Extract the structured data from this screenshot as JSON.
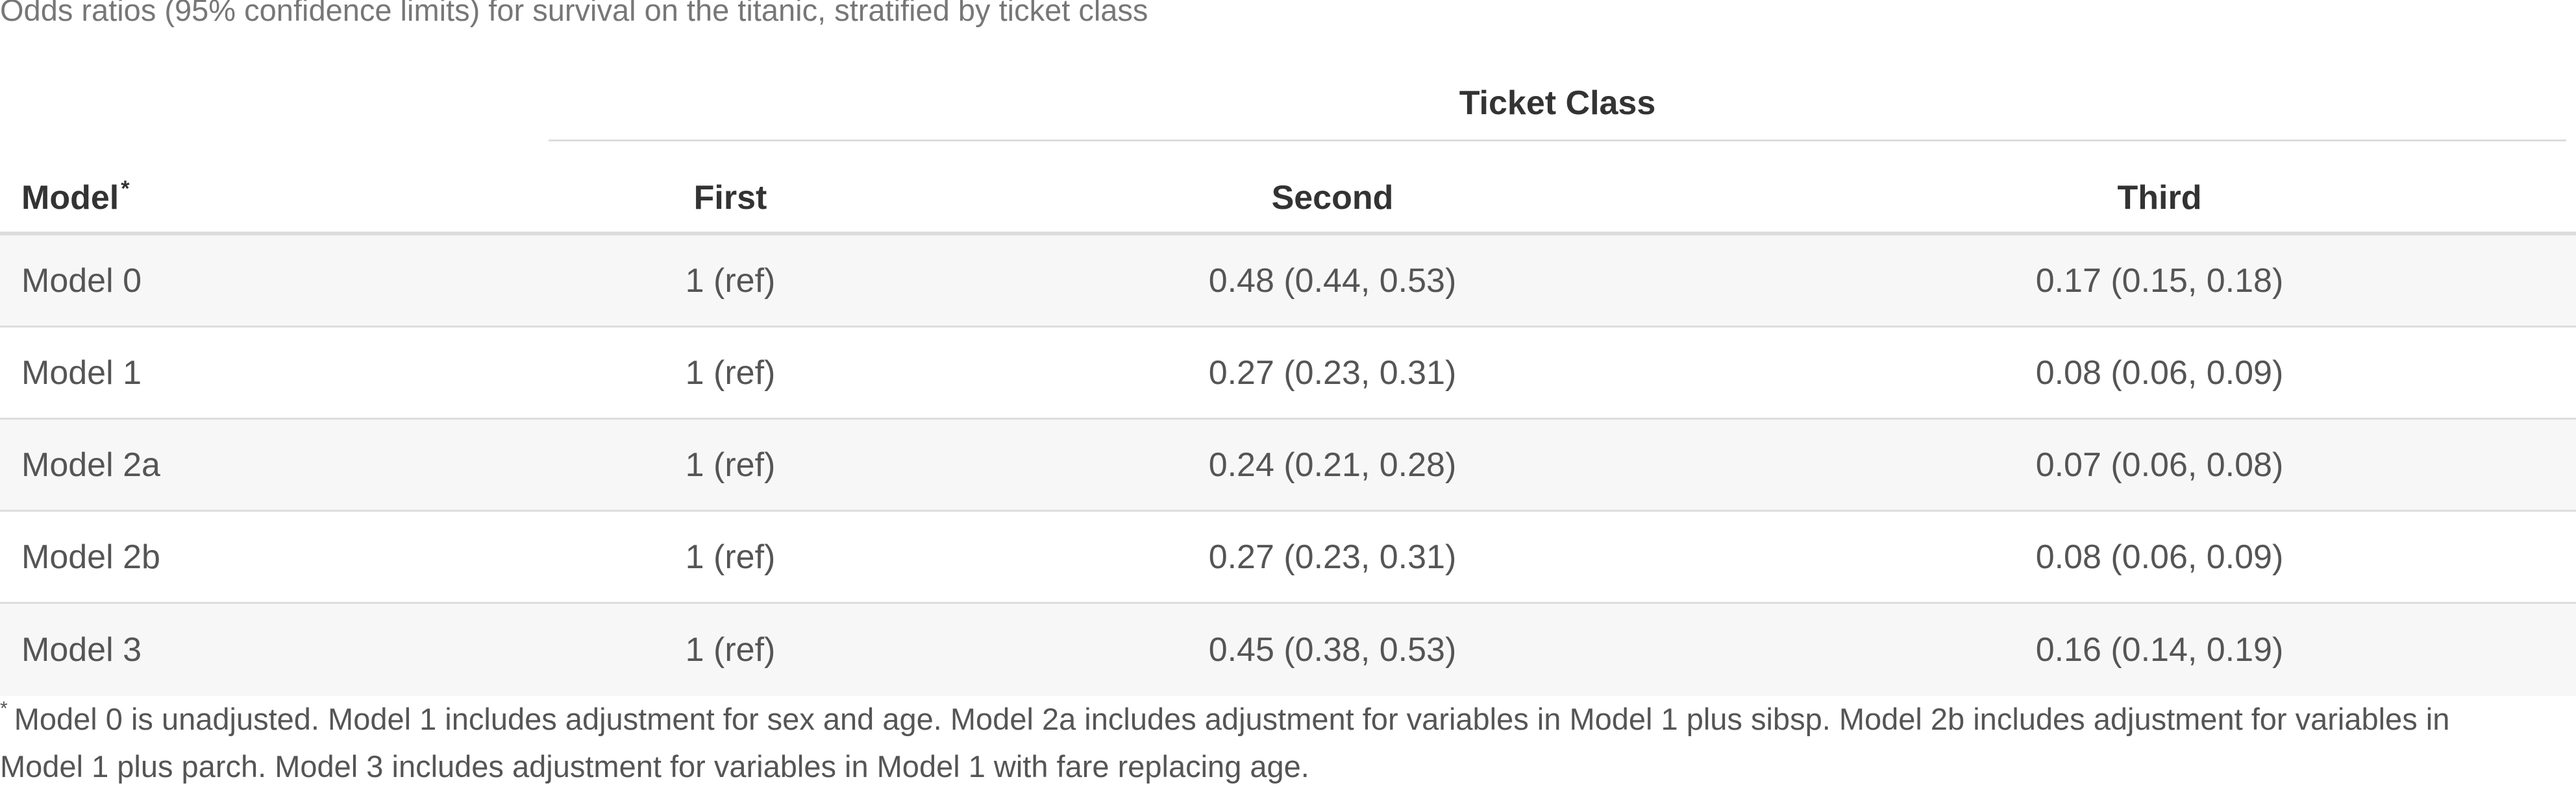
{
  "caption": "Odds ratios (95% confidence limits) for survival on the titanic, stratified by ticket class",
  "table": {
    "spanner": "Ticket Class",
    "headers": {
      "model": "Model",
      "model_marker": "*",
      "first": "First",
      "second": "Second",
      "third": "Third"
    },
    "rows": [
      {
        "model": "Model 0",
        "first": "1 (ref)",
        "second": "0.48 (0.44, 0.53)",
        "third": "0.17 (0.15, 0.18)"
      },
      {
        "model": "Model 1",
        "first": "1 (ref)",
        "second": "0.27 (0.23, 0.31)",
        "third": "0.08 (0.06, 0.09)"
      },
      {
        "model": "Model 2a",
        "first": "1 (ref)",
        "second": "0.24 (0.21, 0.28)",
        "third": "0.07 (0.06, 0.08)"
      },
      {
        "model": "Model 2b",
        "first": "1 (ref)",
        "second": "0.27 (0.23, 0.31)",
        "third": "0.08 (0.06, 0.09)"
      },
      {
        "model": "Model 3",
        "first": "1 (ref)",
        "second": "0.45 (0.38, 0.53)",
        "third": "0.16 (0.14, 0.19)"
      }
    ]
  },
  "footnote": {
    "marker": "*",
    "text": "Model 0 is unadjusted. Model 1 includes adjustment for sex and age. Model 2a includes adjustment for variables in Model 1 plus sibsp. Model 2b includes adjustment for variables in Model 1 plus parch. Model 3 includes adjustment for variables in Model 1 with fare replacing age."
  }
}
